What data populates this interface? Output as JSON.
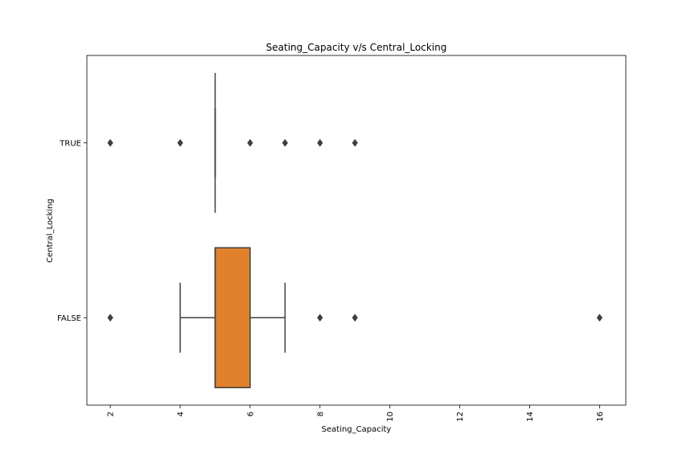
{
  "chart_data": {
    "type": "boxplot",
    "orientation": "horizontal",
    "title": "Seating_Capacity v/s Central_Locking",
    "xlabel": "Seating_Capacity",
    "ylabel": "Central_Locking",
    "xlim": [
      1.33,
      16.75
    ],
    "xticks": [
      2,
      4,
      6,
      8,
      10,
      12,
      14,
      16
    ],
    "categories": [
      "TRUE",
      "FALSE"
    ],
    "grid": false,
    "boxes": [
      {
        "category": "TRUE",
        "q1": 5,
        "median": 5,
        "q3": 5,
        "whisker_low": 5,
        "whisker_high": 5,
        "fill": "#3b75af",
        "outliers": [
          2,
          4,
          6,
          7,
          8,
          9
        ]
      },
      {
        "category": "FALSE",
        "q1": 5,
        "median": 5,
        "q3": 6,
        "whisker_low": 4,
        "whisker_high": 7,
        "fill": "#e1812c",
        "outliers": [
          2,
          8,
          9,
          16
        ]
      }
    ],
    "colors": {
      "line": "#3f3f3f",
      "frame": "#000000"
    }
  }
}
